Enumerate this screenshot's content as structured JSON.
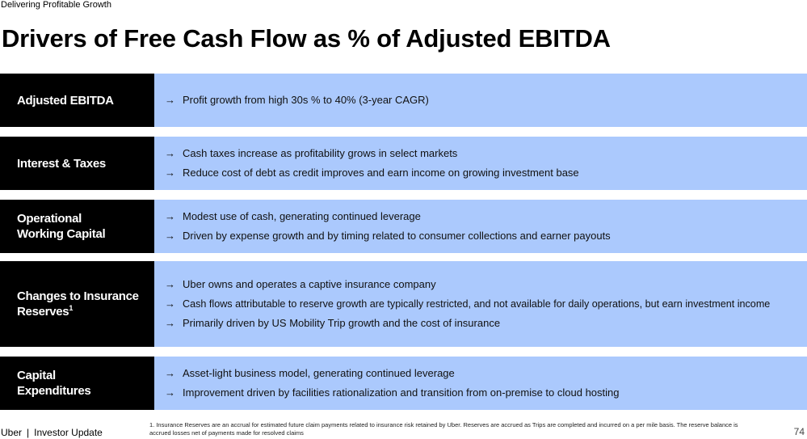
{
  "header": {
    "eyebrow": "Delivering Profitable Growth",
    "title": "Drivers of Free Cash Flow as % of Adjusted EBITDA"
  },
  "arrow_glyph": "→",
  "rows": [
    {
      "label": "Adjusted EBITDA",
      "label_sup": "",
      "bullets": [
        "Profit growth from high 30s % to 40% (3-year CAGR)"
      ]
    },
    {
      "label": "Interest & Taxes",
      "label_sup": "",
      "bullets": [
        "Cash taxes increase as profitability grows in select markets",
        "Reduce cost of debt as credit improves and earn income on growing investment base"
      ]
    },
    {
      "label": "Operational Working Capital",
      "label_sup": "",
      "bullets": [
        "Modest use of cash, generating continued leverage",
        "Driven by expense growth and by timing related to consumer collections and earner payouts"
      ]
    },
    {
      "label": "Changes to Insurance Reserves",
      "label_sup": "1",
      "bullets": [
        "Uber owns and operates a captive insurance company",
        "Cash flows attributable to reserve growth are typically restricted, and not available for daily operations, but earn investment income",
        "Primarily driven by US Mobility Trip growth and the cost of insurance"
      ]
    },
    {
      "label": "Capital Expenditures",
      "label_sup": "",
      "bullets": [
        "Asset-light business model, generating continued leverage",
        "Improvement driven by facilities rationalization and transition from on-premise to cloud hosting"
      ]
    }
  ],
  "footer": {
    "brand": "Uber",
    "separator": "|",
    "section": "Investor Update",
    "footnote": "1. Insurance Reserves are an accrual for estimated future claim payments related to insurance risk retained by Uber. Reserves are accrued as Trips are completed and incurred on a per mile basis. The reserve balance is accrued losses net of payments made for resolved claims",
    "page_number": "74"
  },
  "colors": {
    "label_bg": "#000000",
    "content_bg": "#abc9fd"
  }
}
